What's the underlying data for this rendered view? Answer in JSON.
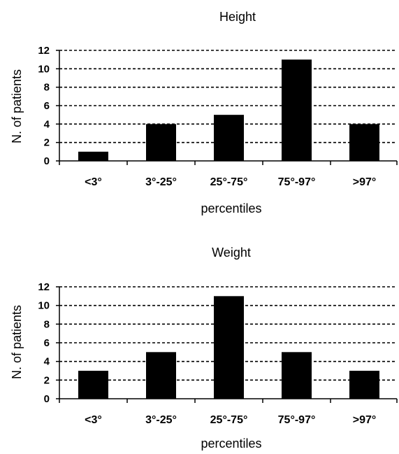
{
  "chart_data": [
    {
      "type": "bar",
      "title": "Height",
      "xlabel": "percentiles",
      "ylabel": "N. of patients",
      "categories": [
        "<3°",
        "3°-25°",
        "25°-75°",
        "75°-97°",
        ">97°"
      ],
      "values": [
        1,
        4,
        5,
        11,
        4
      ],
      "ylim": [
        0,
        12
      ],
      "yticks": [
        0,
        2,
        4,
        6,
        8,
        10,
        12
      ],
      "grid": true,
      "bar_color": "#000000"
    },
    {
      "type": "bar",
      "title": "Weight",
      "xlabel": "percentiles",
      "ylabel": "N. of patients",
      "categories": [
        "<3°",
        "3°-25°",
        "25°-75°",
        "75°-97°",
        ">97°"
      ],
      "values": [
        3,
        5,
        11,
        5,
        3
      ],
      "ylim": [
        0,
        12
      ],
      "yticks": [
        0,
        2,
        4,
        6,
        8,
        10,
        12
      ],
      "grid": true,
      "bar_color": "#000000"
    }
  ]
}
